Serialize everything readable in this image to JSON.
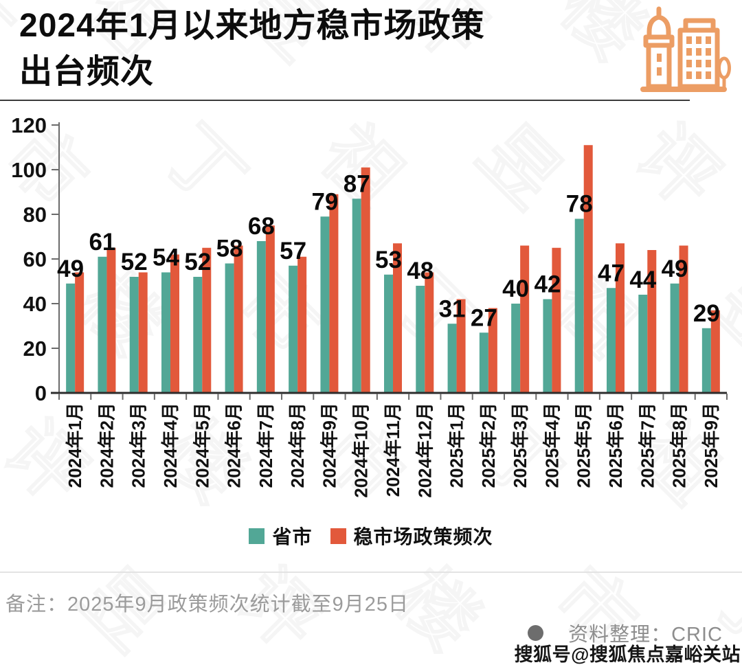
{
  "header": {
    "title_line1": "2024年1月以来地方稳市场政策",
    "title_line2": "出台频次",
    "icon": "city-buildings-icon",
    "icon_color": "#EC9D64"
  },
  "chart_data": {
    "type": "bar",
    "title": "2024年1月以来地方稳市场政策出台频次",
    "categories": [
      "2024年1月",
      "2024年2月",
      "2024年3月",
      "2024年4月",
      "2024年5月",
      "2024年6月",
      "2024年7月",
      "2024年8月",
      "2024年9月",
      "2024年10月",
      "2024年11月",
      "2024年12月",
      "2025年1月",
      "2025年2月",
      "2025年3月",
      "2025年4月",
      "2025年5月",
      "2025年6月",
      "2025年7月",
      "2025年8月",
      "2025年9月"
    ],
    "series": [
      {
        "name": "省市",
        "color": "#52A796",
        "values": [
          49,
          61,
          52,
          54,
          52,
          58,
          68,
          57,
          79,
          87,
          53,
          48,
          31,
          27,
          40,
          42,
          78,
          47,
          44,
          49,
          29
        ]
      },
      {
        "name": "稳市场政策频次",
        "color": "#E2593B",
        "values": [
          54,
          65,
          54,
          62,
          65,
          66,
          75,
          61,
          89,
          101,
          67,
          54,
          42,
          38,
          66,
          65,
          111,
          67,
          64,
          66,
          37
        ]
      }
    ],
    "value_labels_series": "省市",
    "ylim": [
      0,
      120
    ],
    "yticks": [
      0,
      20,
      40,
      60,
      80,
      100,
      120
    ],
    "grid": false,
    "legend_position": "bottom"
  },
  "footer": {
    "note": "备注：2025年9月政策频次统计截至9月25日",
    "source": "资料整理：CRIC",
    "watermark": "搜狐号@搜狐焦点嘉峪关站"
  },
  "background_watermark": "丁祖昱评楼市"
}
